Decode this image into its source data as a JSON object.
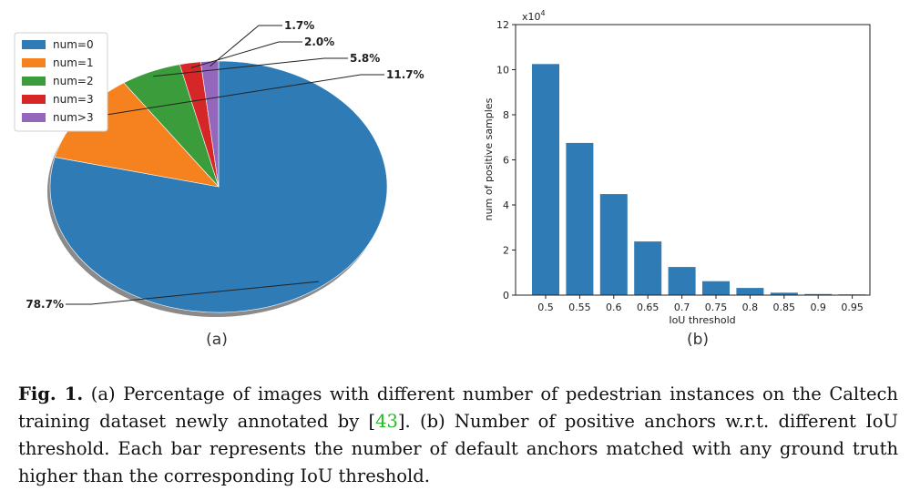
{
  "panel_labels": {
    "a": "(a)",
    "b": "(b)"
  },
  "chart_data": [
    {
      "type": "pie",
      "labels": [
        "num=0",
        "num=1",
        "num=2",
        "num=3",
        "num>3"
      ],
      "values": [
        78.7,
        11.7,
        5.8,
        2.0,
        1.7
      ],
      "value_labels": [
        "78.7%",
        "11.7%",
        "5.8%",
        "2.0%",
        "1.7%"
      ],
      "colors": [
        "#2f7bb6",
        "#f5821f",
        "#3a9c3a",
        "#d62728",
        "#9467bd"
      ],
      "legend_position": "top-left",
      "title": "",
      "start_angle_deg": 90,
      "direction": "clockwise"
    },
    {
      "type": "bar",
      "categories": [
        "0.5",
        "0.55",
        "0.6",
        "0.65",
        "0.7",
        "0.75",
        "0.8",
        "0.85",
        "0.9",
        "0.95"
      ],
      "values": [
        10.25,
        6.75,
        4.48,
        2.38,
        1.25,
        0.62,
        0.32,
        0.11,
        0.05,
        0.02
      ],
      "color": "#2f7bb6",
      "xlabel": "IoU threshold",
      "ylabel": "num of positive samples",
      "ylim": [
        0,
        12
      ],
      "yticks": [
        "0",
        "2",
        "4",
        "6",
        "8",
        "10",
        "12"
      ],
      "ymultiplier_label": "x10",
      "ymultiplier_exp": "4",
      "grid": false,
      "title": ""
    }
  ],
  "caption": {
    "label": "Fig. 1.",
    "part1": " (a) Percentage of images with different number of pedestrian instances on the Caltech training dataset newly annotated by [",
    "cite": "43",
    "part2": "]. (b) Number of positive anchors w.r.t. different IoU threshold. Each bar represents the number of default anchors matched with any ground truth higher than the corresponding IoU threshold."
  }
}
